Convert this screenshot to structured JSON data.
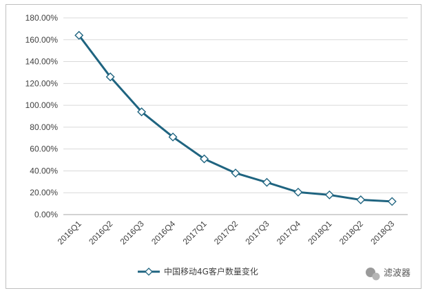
{
  "chart_data": {
    "type": "line",
    "categories": [
      "2016Q1",
      "2016Q2",
      "2016Q3",
      "2016Q4",
      "2017Q1",
      "2017Q2",
      "2017Q3",
      "2017Q4",
      "2018Q1",
      "2018Q2",
      "2018Q3"
    ],
    "series": [
      {
        "name": "中国移动4G客户数量变化",
        "values": [
          164,
          126,
          94,
          71,
          51,
          38,
          29.5,
          20.5,
          18,
          13.5,
          12
        ],
        "color": "#1f6480",
        "marker": "diamond"
      }
    ],
    "ylim": [
      0,
      180
    ],
    "yticks": [
      0,
      20,
      40,
      60,
      80,
      100,
      120,
      140,
      160,
      180
    ],
    "ytick_labels": [
      "0.00%",
      "20.00%",
      "40.00%",
      "60.00%",
      "80.00%",
      "100.00%",
      "120.00%",
      "140.00%",
      "160.00%",
      "180.00%"
    ],
    "grid": true,
    "legend_position": "bottom",
    "title": "",
    "xlabel": "",
    "ylabel": ""
  },
  "watermark": {
    "text": "滤波器",
    "icon": "wechat-icon"
  }
}
